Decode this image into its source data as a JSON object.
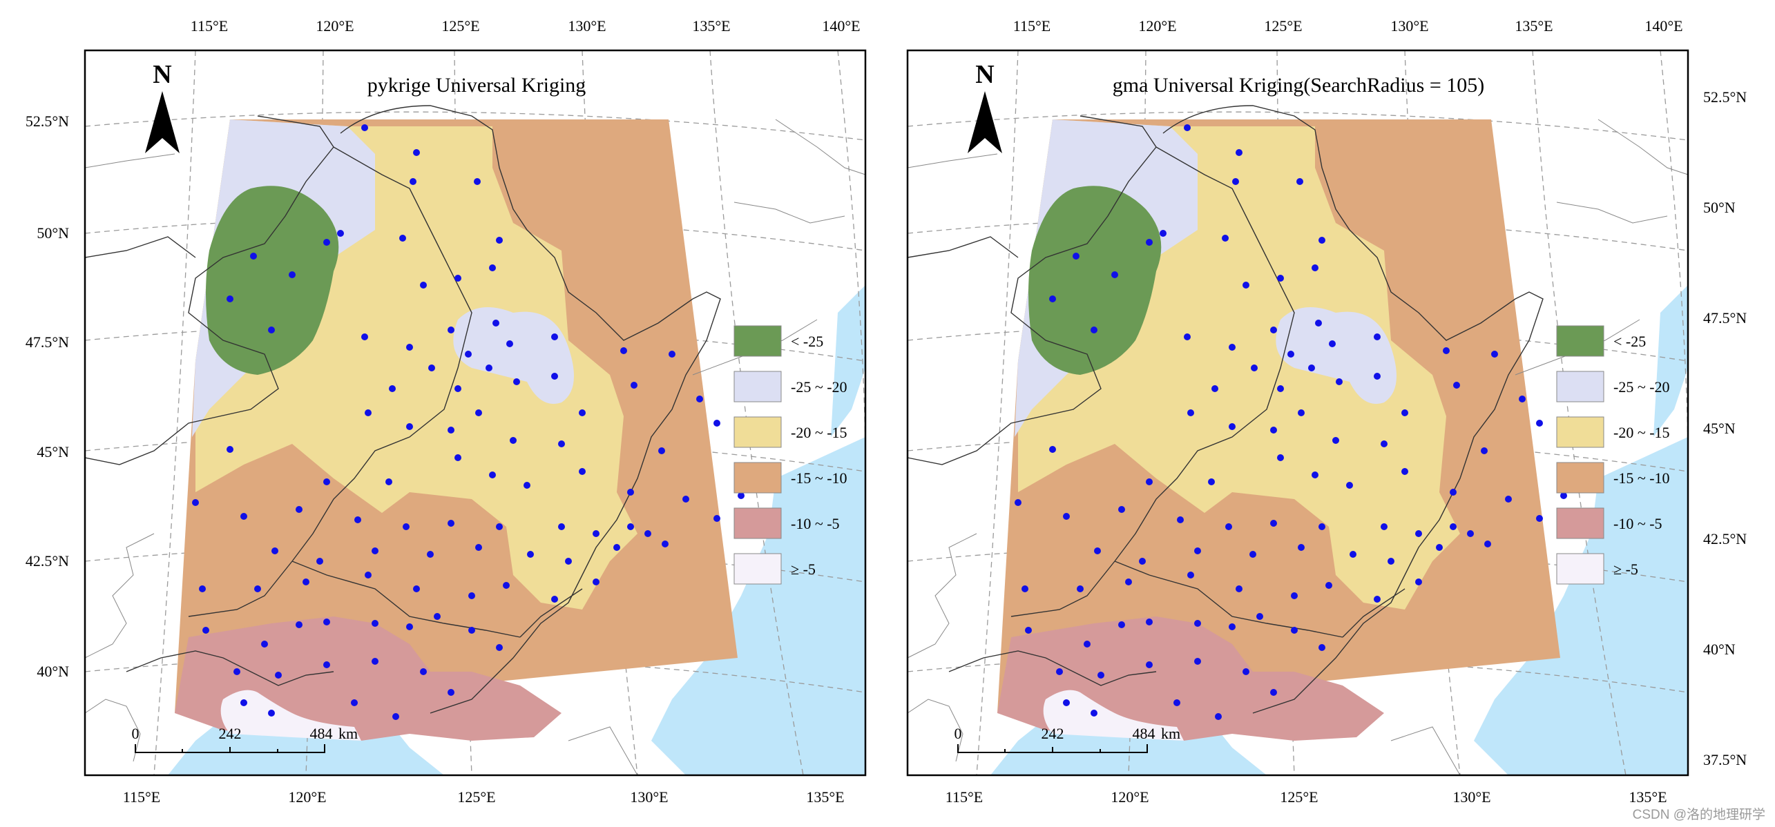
{
  "colors": {
    "sea": "#bfe6fa",
    "land": "#ffffff",
    "class_lt_m25": "#6b9a55",
    "class_m25_m20": "#dcdff3",
    "class_m20_m15": "#f0dd98",
    "class_m15_m10": "#dea97e",
    "class_m10_m5": "#d59a9a",
    "class_ge_m5": "#f6f2fa",
    "station": "#1010e8",
    "graticule": "#9a9a9a",
    "frame": "#000000"
  },
  "panels": [
    {
      "id": "left",
      "title": "pykrige Universal Kriging",
      "top_lon_labels": [
        "115°E",
        "120°E",
        "125°E",
        "130°E",
        "135°E",
        "140°E"
      ],
      "bottom_lon_labels": [
        "115°E",
        "120°E",
        "125°E",
        "130°E",
        "135°E"
      ],
      "lat_labels": [
        "52.5°N",
        "50°N",
        "47.5°N",
        "45°N",
        "42.5°N",
        "40°N"
      ],
      "lat_side": "left"
    },
    {
      "id": "right",
      "title": "gma Universal Kriging(SearchRadius = 105)",
      "top_lon_labels": [
        "115°E",
        "120°E",
        "125°E",
        "130°E",
        "135°E",
        "140°E"
      ],
      "bottom_lon_labels": [
        "115°E",
        "120°E",
        "125°E",
        "130°E",
        "135°E"
      ],
      "lat_labels": [
        "52.5°N",
        "50°N",
        "47.5°N",
        "45°N",
        "42.5°N",
        "40°N",
        "37.5°N"
      ],
      "lat_side": "right"
    }
  ],
  "north_arrow": {
    "label": "N",
    "icon": "north-arrow-icon"
  },
  "scale_bar": {
    "ticks": [
      "0",
      "242",
      "484"
    ],
    "unit": "km"
  },
  "legend": [
    {
      "label": "< -25",
      "color_key": "class_lt_m25"
    },
    {
      "label": "-25 ~ -20",
      "color_key": "class_m25_m20"
    },
    {
      "label": "-20 ~ -15",
      "color_key": "class_m20_m15"
    },
    {
      "label": "-15 ~ -10",
      "color_key": "class_m15_m10"
    },
    {
      "label": "-10 ~ -5",
      "color_key": "class_m10_m5"
    },
    {
      "label": "≥ -5",
      "color_key": "class_ge_m5"
    }
  ],
  "watermark": "CSDN @洛的地理研学"
}
